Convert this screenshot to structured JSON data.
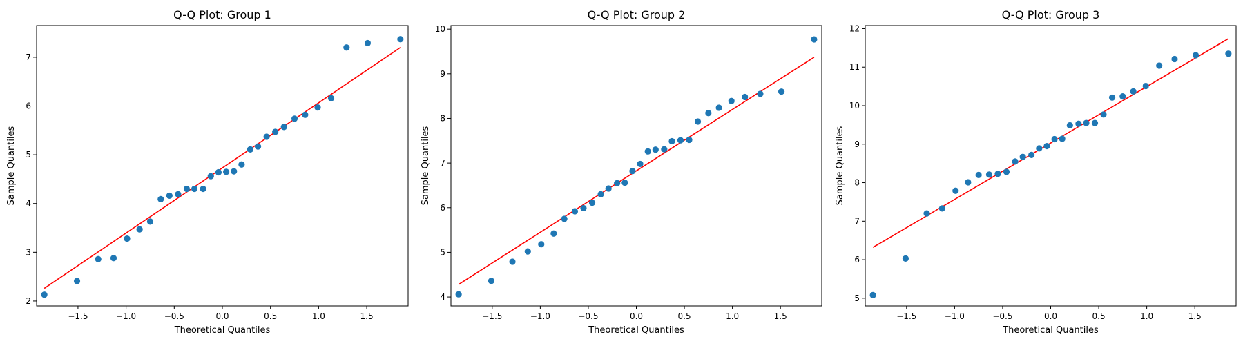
{
  "chart_data": [
    {
      "type": "scatter",
      "title": "Q-Q Plot: Group 1",
      "xlabel": "Theoretical Quantiles",
      "ylabel": "Sample Quantiles",
      "xlim": [
        -1.93,
        1.93
      ],
      "ylim": [
        1.9,
        7.65
      ],
      "xticks": [
        -1.5,
        -1.0,
        -0.5,
        0.0,
        0.5,
        1.0,
        1.5
      ],
      "xtick_labels": [
        "−1.5",
        "−1.0",
        "−0.5",
        "0.0",
        "0.5",
        "1.0",
        "1.5"
      ],
      "yticks": [
        2,
        3,
        4,
        5,
        6,
        7
      ],
      "ytick_labels": [
        "2",
        "3",
        "4",
        "5",
        "6",
        "7"
      ],
      "marker_color": "#1f77b4",
      "line_color": "#ff0000",
      "points": {
        "x": [
          -1.85,
          -1.51,
          -1.29,
          -1.13,
          -0.99,
          -0.86,
          -0.75,
          -0.64,
          -0.55,
          -0.46,
          -0.37,
          -0.29,
          -0.2,
          -0.12,
          -0.04,
          0.04,
          0.12,
          0.2,
          0.29,
          0.37,
          0.46,
          0.55,
          0.64,
          0.75,
          0.86,
          0.99,
          1.13,
          1.29,
          1.51,
          1.85
        ],
        "y": [
          2.13,
          2.41,
          2.86,
          2.88,
          3.28,
          3.47,
          3.63,
          4.09,
          4.16,
          4.19,
          4.3,
          4.3,
          4.3,
          4.56,
          4.64,
          4.65,
          4.66,
          4.8,
          5.11,
          5.17,
          5.37,
          5.47,
          5.57,
          5.74,
          5.82,
          5.97,
          6.16,
          7.2,
          7.29,
          7.37
        ]
      },
      "fit_line": {
        "x": [
          -1.85,
          1.85
        ],
        "y": [
          2.26,
          7.2
        ]
      }
    },
    {
      "type": "scatter",
      "title": "Q-Q Plot: Group 2",
      "xlabel": "Theoretical Quantiles",
      "ylabel": "Sample Quantiles",
      "xlim": [
        -1.93,
        1.93
      ],
      "ylim": [
        3.8,
        10.08
      ],
      "xticks": [
        -1.5,
        -1.0,
        -0.5,
        0.0,
        0.5,
        1.0,
        1.5
      ],
      "xtick_labels": [
        "−1.5",
        "−1.0",
        "−0.5",
        "0.0",
        "0.5",
        "1.0",
        "1.5"
      ],
      "yticks": [
        4,
        5,
        6,
        7,
        8,
        9,
        10
      ],
      "ytick_labels": [
        "4",
        "5",
        "6",
        "7",
        "8",
        "9",
        "10"
      ],
      "marker_color": "#1f77b4",
      "line_color": "#ff0000",
      "points": {
        "x": [
          -1.85,
          -1.51,
          -1.29,
          -1.13,
          -0.99,
          -0.86,
          -0.75,
          -0.64,
          -0.55,
          -0.46,
          -0.37,
          -0.29,
          -0.2,
          -0.12,
          -0.04,
          0.04,
          0.12,
          0.2,
          0.29,
          0.37,
          0.46,
          0.55,
          0.64,
          0.75,
          0.86,
          0.99,
          1.13,
          1.29,
          1.51,
          1.85
        ],
        "y": [
          4.06,
          4.36,
          4.79,
          5.02,
          5.18,
          5.42,
          5.75,
          5.92,
          5.99,
          6.11,
          6.3,
          6.43,
          6.55,
          6.56,
          6.82,
          6.98,
          7.26,
          7.3,
          7.31,
          7.49,
          7.51,
          7.52,
          7.93,
          8.12,
          8.24,
          8.39,
          8.48,
          8.55,
          8.6,
          9.77
        ]
      },
      "fit_line": {
        "x": [
          -1.85,
          1.85
        ],
        "y": [
          4.28,
          9.37
        ]
      }
    },
    {
      "type": "scatter",
      "title": "Q-Q Plot: Group 3",
      "xlabel": "Theoretical Quantiles",
      "ylabel": "Sample Quantiles",
      "xlim": [
        -1.93,
        1.93
      ],
      "ylim": [
        4.8,
        12.08
      ],
      "xticks": [
        -1.5,
        -1.0,
        -0.5,
        0.0,
        0.5,
        1.0,
        1.5
      ],
      "xtick_labels": [
        "−1.5",
        "−1.0",
        "−0.5",
        "0.0",
        "0.5",
        "1.0",
        "1.5"
      ],
      "yticks": [
        5,
        6,
        7,
        8,
        9,
        10,
        11,
        12
      ],
      "ytick_labels": [
        "5",
        "6",
        "7",
        "8",
        "9",
        "10",
        "11",
        "12"
      ],
      "marker_color": "#1f77b4",
      "line_color": "#ff0000",
      "points": {
        "x": [
          -1.85,
          -1.51,
          -1.29,
          -1.13,
          -0.99,
          -0.86,
          -0.75,
          -0.64,
          -0.55,
          -0.46,
          -0.37,
          -0.29,
          -0.2,
          -0.12,
          -0.04,
          0.04,
          0.12,
          0.2,
          0.29,
          0.37,
          0.46,
          0.55,
          0.64,
          0.75,
          0.86,
          0.99,
          1.13,
          1.29,
          1.51,
          1.85
        ],
        "y": [
          5.08,
          6.03,
          7.2,
          7.33,
          7.79,
          8.01,
          8.2,
          8.21,
          8.23,
          8.28,
          8.55,
          8.67,
          8.72,
          8.89,
          8.95,
          9.13,
          9.14,
          9.49,
          9.53,
          9.55,
          9.55,
          9.77,
          10.21,
          10.24,
          10.37,
          10.51,
          11.04,
          11.21,
          11.31,
          11.35
        ]
      },
      "fit_line": {
        "x": [
          -1.85,
          1.85
        ],
        "y": [
          6.32,
          11.74
        ]
      }
    }
  ]
}
